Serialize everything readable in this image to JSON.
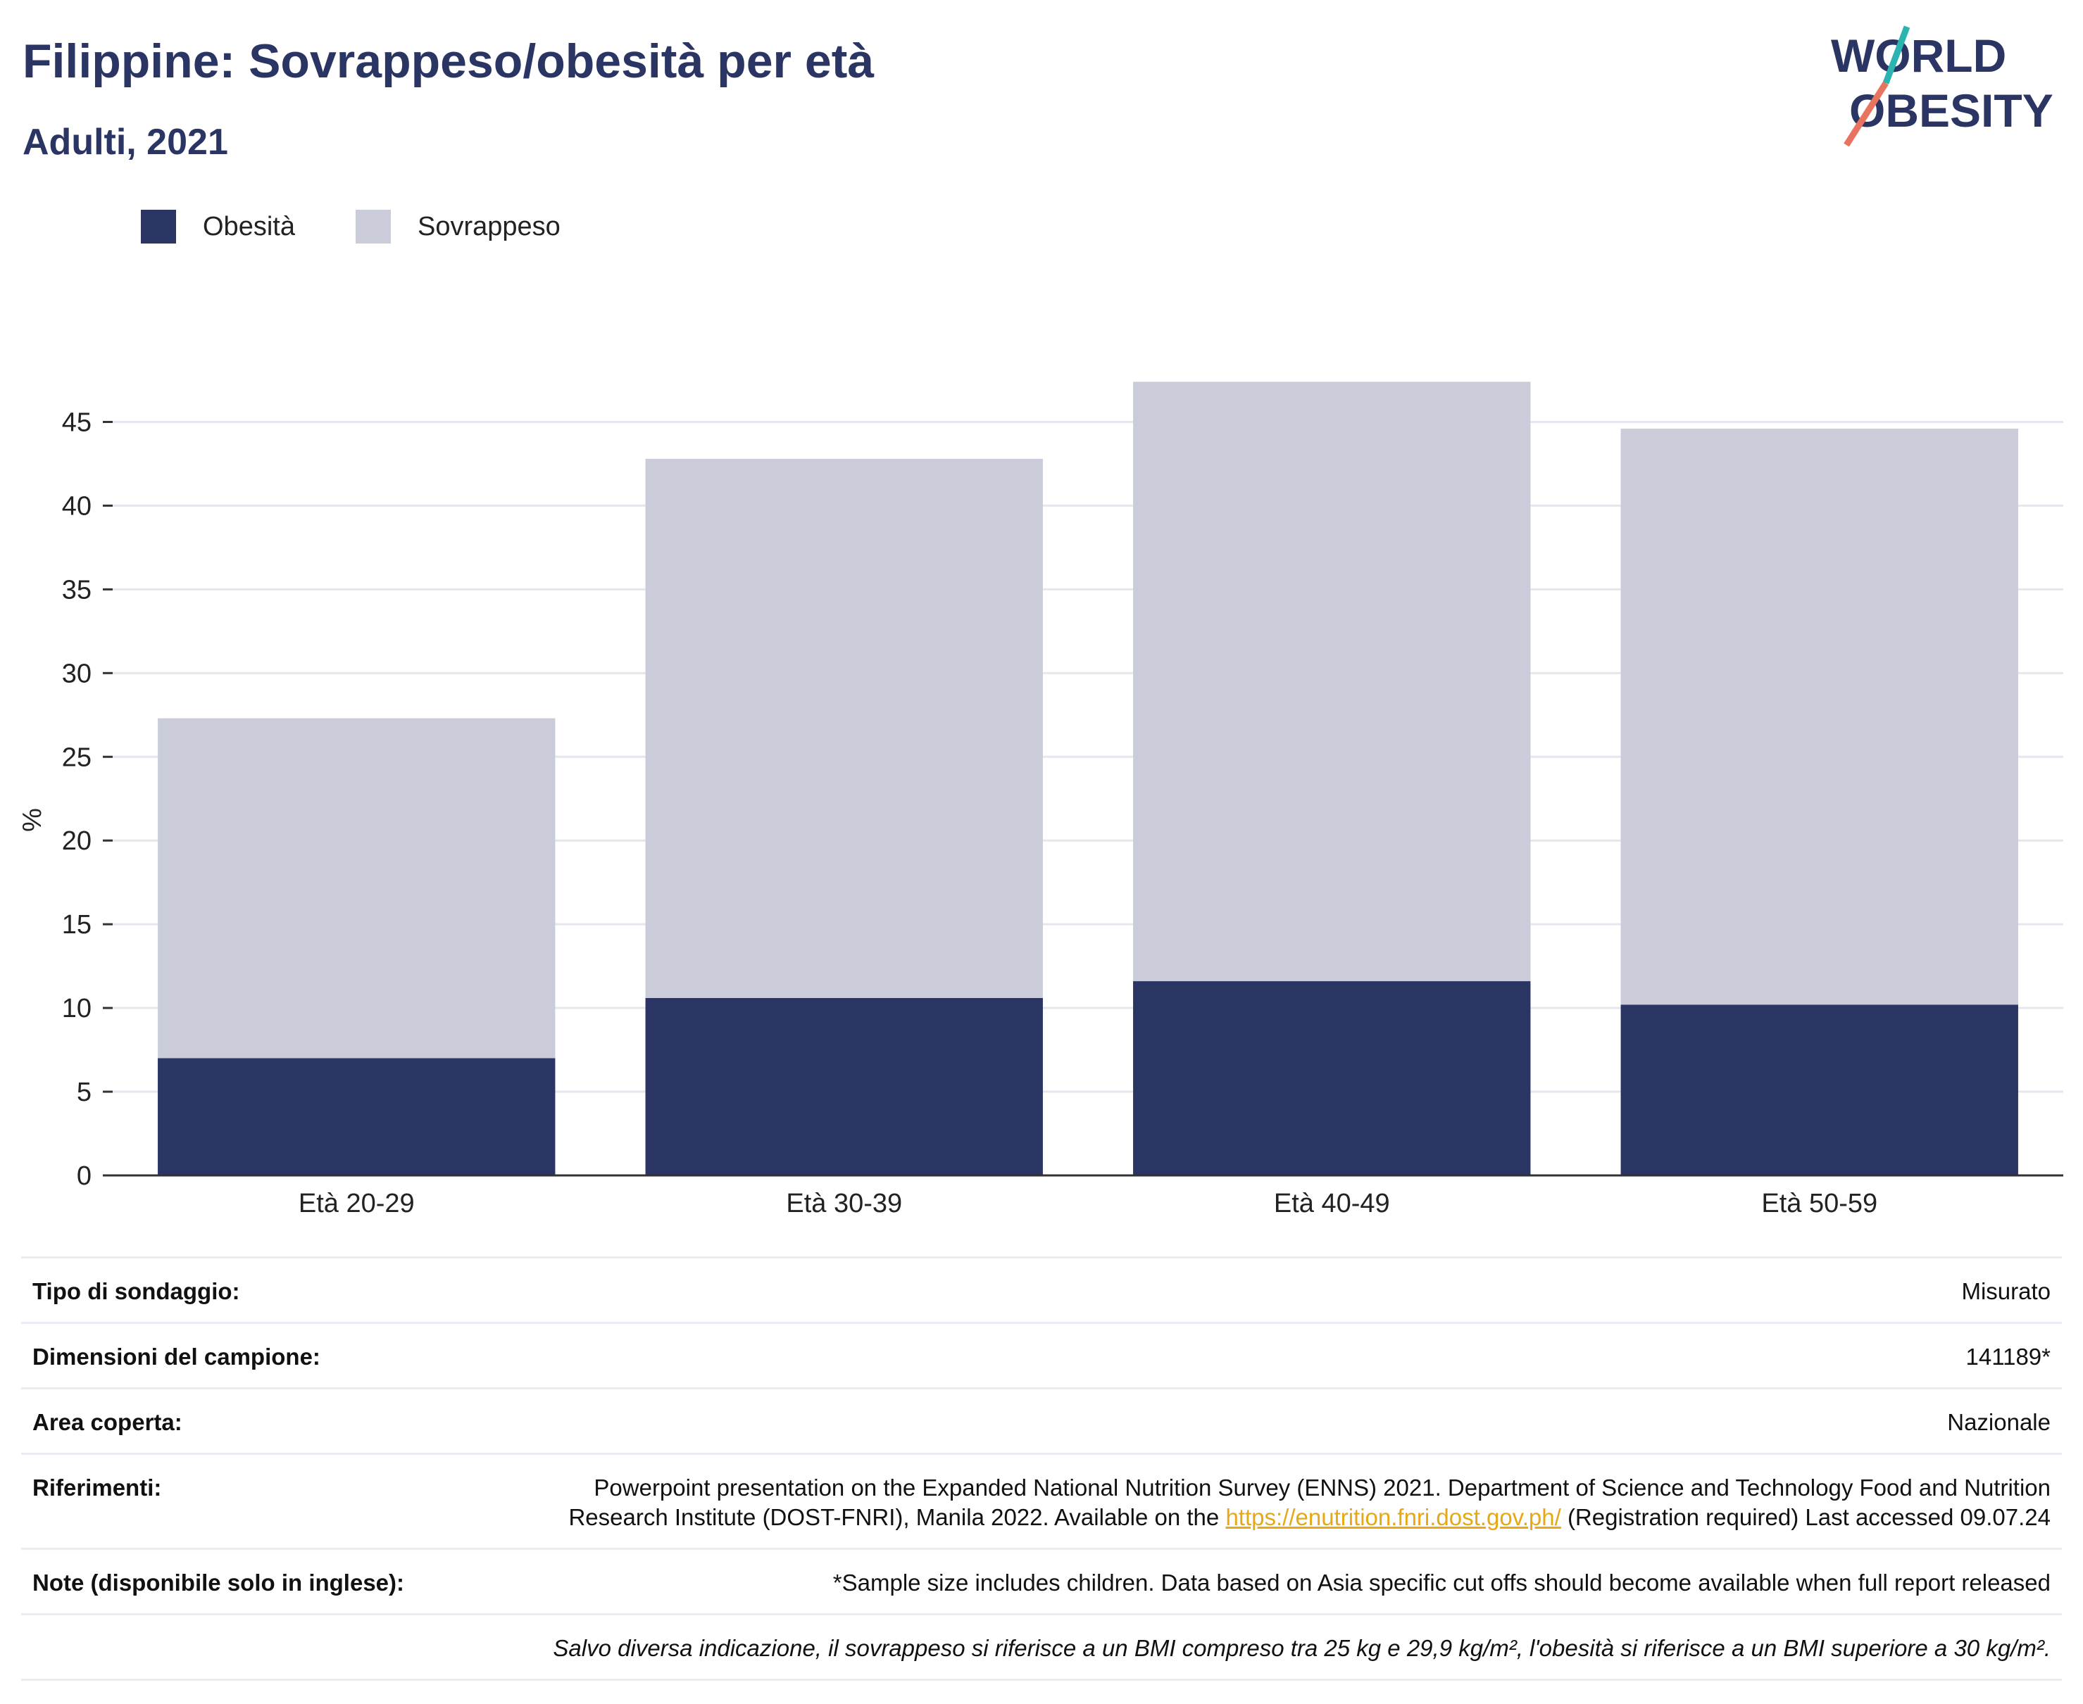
{
  "header": {
    "title": "Filippine: Sovrappeso/obesità per età",
    "subtitle": "Adulti, 2021"
  },
  "logo": {
    "line1": "WORLD",
    "line2": "OBESITY",
    "name": "world-obesity-logo"
  },
  "colors": {
    "obesity": "#2b3563",
    "overweight": "#cacdd9",
    "grid": "#e6e6ee",
    "axis": "#333333",
    "link": "#e6a817",
    "logo_teal": "#2bb4b0",
    "logo_coral": "#e8735e"
  },
  "chart_data": {
    "type": "bar",
    "stacked": true,
    "categories": [
      "Età 20-29",
      "Età 30-39",
      "Età 40-49",
      "Età 50-59"
    ],
    "series": [
      {
        "name": "Obesità",
        "values": [
          7.0,
          10.6,
          11.6,
          10.2
        ]
      },
      {
        "name": "Sovrappeso",
        "values": [
          20.3,
          32.2,
          35.8,
          34.4
        ]
      }
    ],
    "ylabel": "%",
    "xlabel": "",
    "ylim": [
      0,
      47.5
    ],
    "yticks": [
      0,
      5,
      10,
      15,
      20,
      25,
      30,
      35,
      40,
      45
    ],
    "grid": true,
    "legend": "top-left"
  },
  "info": {
    "rows": [
      {
        "label": "Tipo di sondaggio:",
        "value": "Misurato"
      },
      {
        "label": "Dimensioni del campione:",
        "value": "141189*"
      },
      {
        "label": "Area coperta:",
        "value": "Nazionale"
      }
    ],
    "references": {
      "label": "Riferimenti:",
      "text1": "Powerpoint presentation on the Expanded National Nutrition Survey (ENNS) 2021. Department of Science and Technology Food and Nutrition Research Institute (DOST-FNRI), Manila 2022. Available on the",
      "link": "https://enutrition.fnri.dost.gov.ph/",
      "text2": "(Registration required) Last accessed 09.07.24"
    },
    "notes": {
      "label": "Note (disponibile solo in inglese):",
      "value": "*Sample size includes children. Data based on Asia specific cut offs should become available when full report released"
    },
    "footnote": "Salvo diversa indicazione, il sovrappeso si riferisce a un BMI compreso tra 25 kg e 29,9 kg/m², l'obesità si riferisce a un BMI superiore a 30 kg/m²."
  }
}
